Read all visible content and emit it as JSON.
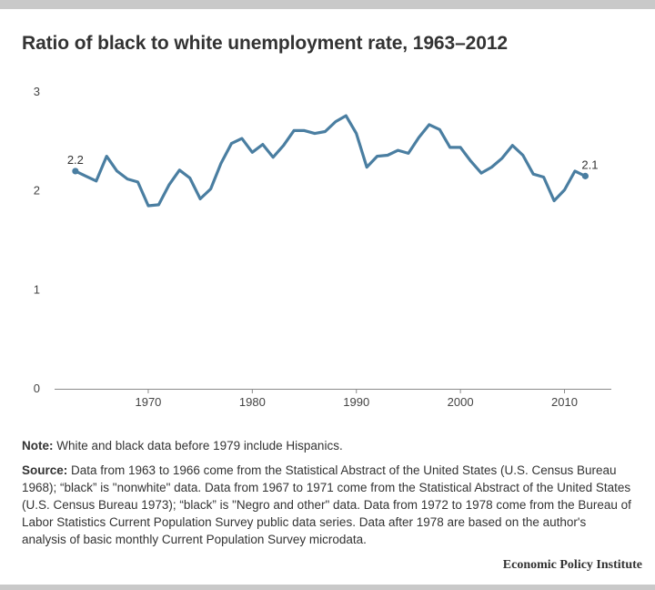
{
  "title": "Ratio of black to white unemployment rate, 1963–2012",
  "notes": {
    "note_label": "Note:",
    "note_text": " White and black data before 1979 include Hispanics.",
    "source_label": "Source:",
    "source_text": " Data from 1963 to 1966 come from the Statistical Abstract of the United States (U.S. Census Bureau 1968); “black” is \"nonwhite\" data. Data from 1967 to 1971 come from the Statistical Abstract of the United States (U.S. Census Bureau 1973); “black” is \"Negro and other\" data. Data from 1972 to 1978 come from the Bureau of Labor Statistics Current Population Survey public data series. Data after 1978 are based on the author's analysis of basic monthly Current Population Survey microdata."
  },
  "credit": "Economic Policy Institute",
  "chart_data": {
    "type": "line",
    "title": "Ratio of black to white unemployment rate, 1963–2012",
    "xlabel": "",
    "ylabel": "",
    "xlim": [
      1961,
      2014.5
    ],
    "ylim": [
      0,
      3
    ],
    "y_ticks": [
      0,
      1,
      2,
      3
    ],
    "x_ticks": [
      1970,
      1980,
      1990,
      2000,
      2010
    ],
    "grid": false,
    "color": "#4a7ea1",
    "x": [
      1963,
      1964,
      1965,
      1966,
      1967,
      1968,
      1969,
      1970,
      1971,
      1972,
      1973,
      1974,
      1975,
      1976,
      1977,
      1978,
      1979,
      1980,
      1981,
      1982,
      1983,
      1984,
      1985,
      1986,
      1987,
      1988,
      1989,
      1990,
      1991,
      1992,
      1993,
      1994,
      1995,
      1996,
      1997,
      1998,
      1999,
      2000,
      2001,
      2002,
      2003,
      2004,
      2005,
      2006,
      2007,
      2008,
      2009,
      2010,
      2011,
      2012
    ],
    "y": [
      2.2,
      2.15,
      2.1,
      2.35,
      2.2,
      2.12,
      2.09,
      1.85,
      1.86,
      2.06,
      2.21,
      2.13,
      1.92,
      2.02,
      2.28,
      2.48,
      2.53,
      2.39,
      2.47,
      2.34,
      2.46,
      2.61,
      2.61,
      2.58,
      2.6,
      2.7,
      2.76,
      2.58,
      2.24,
      2.35,
      2.36,
      2.41,
      2.38,
      2.54,
      2.67,
      2.62,
      2.44,
      2.44,
      2.3,
      2.18,
      2.24,
      2.33,
      2.46,
      2.36,
      2.17,
      2.14,
      1.9,
      2.01,
      2.2,
      2.15
    ],
    "annotations": [
      {
        "x": 1963,
        "y": 2.2,
        "label": "2.2",
        "position": "start"
      },
      {
        "x": 2012,
        "y": 2.15,
        "label": "2.1",
        "position": "end"
      }
    ]
  }
}
